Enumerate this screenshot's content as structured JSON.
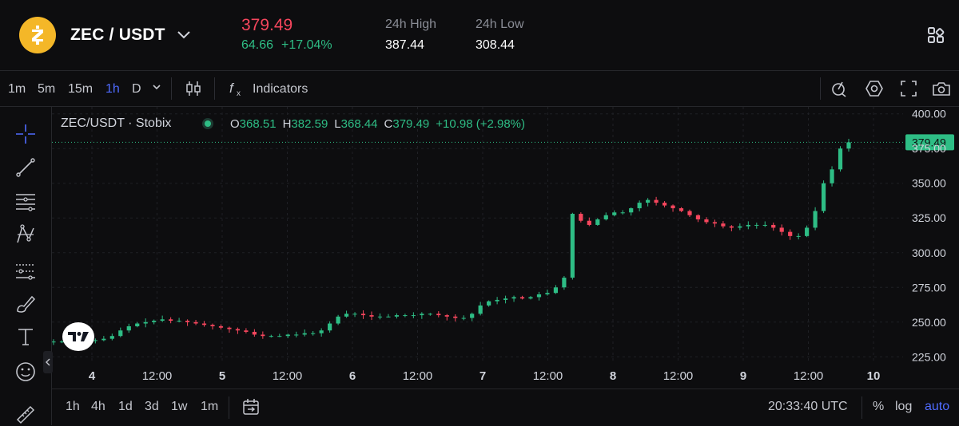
{
  "header": {
    "pair": "ZEC / USDT",
    "price": "379.49",
    "change_abs": "64.66",
    "change_pct": "+17.04%",
    "high_label": "24h High",
    "high_value": "387.44",
    "low_label": "24h Low",
    "low_value": "308.44"
  },
  "toolbar": {
    "timeframes": [
      "1m",
      "5m",
      "15m",
      "1h",
      "D"
    ],
    "active_timeframe": "1h",
    "indicators_label": "Indicators"
  },
  "legend": {
    "symbol": "ZEC/USDT · Stobix",
    "o_key": "O",
    "o_val": "368.51",
    "h_key": "H",
    "h_val": "382.59",
    "l_key": "L",
    "l_val": "368.44",
    "c_key": "C",
    "c_val": "379.49",
    "chg": "+10.98 (+2.98%)"
  },
  "bottom": {
    "ranges": [
      "1h",
      "4h",
      "1d",
      "3d",
      "1w",
      "1m"
    ],
    "time": "20:33:40 UTC",
    "pct_label": "%",
    "log_label": "log",
    "auto_label": "auto"
  },
  "colors": {
    "up": "#2ebd85",
    "down": "#f6465d",
    "accent": "#4f6bff",
    "bg": "#0d0d0f"
  },
  "chart_data": {
    "type": "candlestick",
    "ylim": [
      220,
      405
    ],
    "y_ticks": [
      "400.00",
      "375.00",
      "350.00",
      "325.00",
      "300.00",
      "275.00",
      "250.00",
      "225.00"
    ],
    "x_ticks": [
      "4",
      "12:00",
      "5",
      "12:00",
      "6",
      "12:00",
      "7",
      "12:00",
      "8",
      "12:00",
      "9",
      "12:00",
      "10"
    ],
    "last_price": "379.49",
    "last_price_value": 379.49,
    "close_path": [
      236,
      236,
      236,
      236,
      237,
      237,
      238,
      240,
      244,
      247,
      249,
      250,
      251,
      252,
      251,
      251,
      250,
      249,
      248,
      247,
      246,
      245,
      244,
      243,
      241,
      240,
      240,
      240,
      241,
      241,
      242,
      242,
      244,
      249,
      254,
      256,
      256,
      255,
      254,
      254,
      254,
      255,
      255,
      255,
      256,
      256,
      255,
      254,
      253,
      253,
      256,
      262,
      265,
      266,
      267,
      268,
      267,
      268,
      270,
      271,
      275,
      282,
      328,
      323,
      320,
      324,
      327,
      329,
      329,
      332,
      336,
      338,
      336,
      334,
      332,
      330,
      327,
      324,
      322,
      321,
      319,
      318,
      319,
      320,
      320,
      320,
      318,
      315,
      312,
      312,
      318,
      330,
      350,
      360,
      375,
      379.49
    ]
  }
}
